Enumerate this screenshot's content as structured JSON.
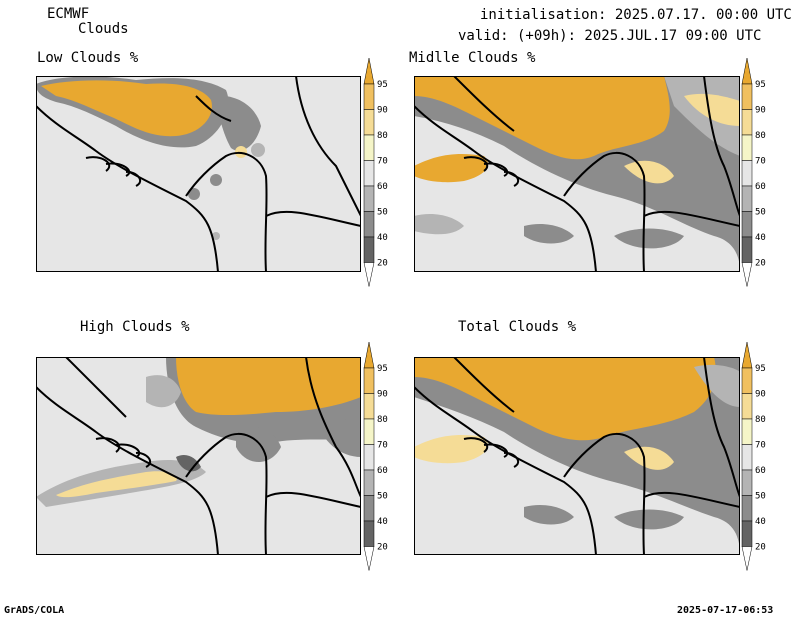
{
  "header": {
    "model": "ECMWF",
    "product": "Clouds",
    "init": "initialisation: 2025.07.17. 00:00 UTC",
    "valid": "valid: (+09h): 2025.JUL.17 09:00 UTC"
  },
  "panels": [
    {
      "id": "low",
      "title": "Low Clouds %"
    },
    {
      "id": "middle",
      "title": "Midlle Clouds %"
    },
    {
      "id": "high",
      "title": "High Clouds %"
    },
    {
      "id": "total",
      "title": "Total Clouds %"
    }
  ],
  "colorbar": {
    "ticks": [
      "95",
      "90",
      "80",
      "70",
      "60",
      "50",
      "40",
      "20"
    ],
    "colors": [
      "#e8a830",
      "#f0c060",
      "#f5dc96",
      "#f5f5c8",
      "#e6e6e6",
      "#b4b4b4",
      "#8c8c8c",
      "#646464",
      "#ffffff"
    ]
  },
  "footer": {
    "left": "GrADS/COLA",
    "right": "2025-07-17-06:53"
  }
}
